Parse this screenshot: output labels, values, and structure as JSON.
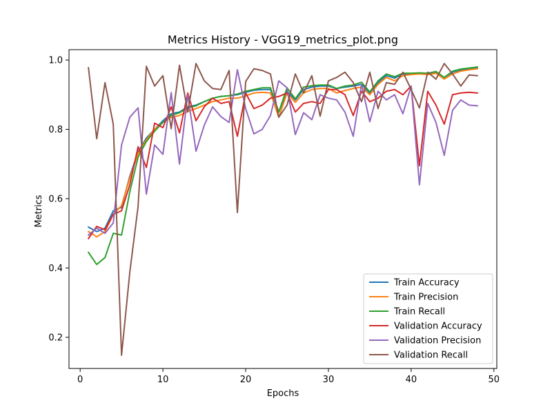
{
  "chart_data": {
    "type": "line",
    "title": "Metrics History - VGG19_metrics_plot.png",
    "xlabel": "Epochs",
    "ylabel": "Metrics",
    "xlim": [
      -1.35,
      50.35
    ],
    "ylim": [
      0.11,
      1.03
    ],
    "xticks": [
      0,
      10,
      20,
      30,
      40,
      50
    ],
    "yticks": [
      0.2,
      0.4,
      0.6,
      0.8,
      1.0
    ],
    "xtick_labels": [
      "0",
      "10",
      "20",
      "30",
      "40",
      "50"
    ],
    "ytick_labels": [
      "0.2",
      "0.4",
      "0.6",
      "0.8",
      "1.0"
    ],
    "grid": false,
    "legend_position": "lower-right",
    "x": [
      1,
      2,
      3,
      4,
      5,
      6,
      7,
      8,
      9,
      10,
      11,
      12,
      13,
      14,
      15,
      16,
      17,
      18,
      19,
      20,
      21,
      22,
      23,
      24,
      25,
      26,
      27,
      28,
      29,
      30,
      31,
      32,
      33,
      34,
      35,
      36,
      37,
      38,
      39,
      40,
      41,
      42,
      43,
      44,
      45,
      46,
      47,
      48
    ],
    "series": [
      {
        "name": "Train Accuracy",
        "color": "#1f77b4",
        "values": [
          0.518,
          0.505,
          0.515,
          0.565,
          0.575,
          0.665,
          0.735,
          0.775,
          0.8,
          0.825,
          0.845,
          0.85,
          0.865,
          0.87,
          0.88,
          0.89,
          0.895,
          0.897,
          0.9,
          0.907,
          0.913,
          0.915,
          0.915,
          0.85,
          0.91,
          0.885,
          0.915,
          0.922,
          0.925,
          0.925,
          0.918,
          0.922,
          0.925,
          0.93,
          0.905,
          0.935,
          0.955,
          0.948,
          0.96,
          0.96,
          0.962,
          0.96,
          0.965,
          0.95,
          0.965,
          0.972,
          0.975,
          0.978
        ]
      },
      {
        "name": "Train Precision",
        "color": "#ff7f0e",
        "values": [
          0.505,
          0.49,
          0.505,
          0.555,
          0.58,
          0.66,
          0.73,
          0.77,
          0.8,
          0.82,
          0.835,
          0.84,
          0.852,
          0.86,
          0.87,
          0.88,
          0.885,
          0.89,
          0.89,
          0.897,
          0.905,
          0.907,
          0.905,
          0.835,
          0.905,
          0.878,
          0.905,
          0.915,
          0.918,
          0.918,
          0.905,
          0.912,
          0.918,
          0.922,
          0.9,
          0.93,
          0.95,
          0.94,
          0.955,
          0.958,
          0.96,
          0.958,
          0.962,
          0.945,
          0.96,
          0.968,
          0.972,
          0.975
        ]
      },
      {
        "name": "Train Recall",
        "color": "#2ca02c",
        "values": [
          0.445,
          0.41,
          0.43,
          0.5,
          0.495,
          0.62,
          0.72,
          0.765,
          0.795,
          0.82,
          0.84,
          0.848,
          0.862,
          0.868,
          0.88,
          0.89,
          0.895,
          0.897,
          0.902,
          0.91,
          0.915,
          0.92,
          0.92,
          0.85,
          0.92,
          0.888,
          0.922,
          0.926,
          0.928,
          0.928,
          0.918,
          0.925,
          0.928,
          0.936,
          0.908,
          0.94,
          0.96,
          0.952,
          0.962,
          0.962,
          0.963,
          0.962,
          0.967,
          0.95,
          0.968,
          0.974,
          0.977,
          0.98
        ]
      },
      {
        "name": "Validation Accuracy",
        "color": "#d62728",
        "values": [
          0.485,
          0.52,
          0.51,
          0.555,
          0.565,
          0.64,
          0.75,
          0.69,
          0.818,
          0.805,
          0.865,
          0.79,
          0.905,
          0.825,
          0.865,
          0.89,
          0.875,
          0.88,
          0.78,
          0.905,
          0.86,
          0.87,
          0.89,
          0.895,
          0.905,
          0.85,
          0.875,
          0.88,
          0.875,
          0.915,
          0.915,
          0.9,
          0.84,
          0.91,
          0.88,
          0.89,
          0.91,
          0.915,
          0.9,
          0.925,
          0.695,
          0.91,
          0.87,
          0.815,
          0.9,
          0.905,
          0.907,
          0.905
        ]
      },
      {
        "name": "Validation Precision",
        "color": "#9467bd",
        "values": [
          0.495,
          0.515,
          0.5,
          0.53,
          0.755,
          0.835,
          0.862,
          0.613,
          0.755,
          0.728,
          0.906,
          0.7,
          0.9,
          0.737,
          0.812,
          0.865,
          0.837,
          0.82,
          0.972,
          0.86,
          0.787,
          0.8,
          0.84,
          0.94,
          0.92,
          0.785,
          0.848,
          0.828,
          0.9,
          0.89,
          0.885,
          0.85,
          0.78,
          0.93,
          0.822,
          0.91,
          0.885,
          0.9,
          0.845,
          0.925,
          0.64,
          0.875,
          0.82,
          0.725,
          0.855,
          0.885,
          0.87,
          0.868
        ]
      },
      {
        "name": "Validation Recall",
        "color": "#8c564b",
        "values": [
          0.978,
          0.773,
          0.935,
          0.815,
          0.148,
          0.388,
          0.578,
          0.982,
          0.925,
          0.955,
          0.802,
          0.985,
          0.85,
          0.99,
          0.94,
          0.918,
          0.915,
          0.97,
          0.56,
          0.938,
          0.975,
          0.97,
          0.96,
          0.835,
          0.87,
          0.96,
          0.905,
          0.955,
          0.838,
          0.94,
          0.95,
          0.965,
          0.935,
          0.88,
          0.965,
          0.86,
          0.935,
          0.93,
          0.965,
          0.915,
          0.862,
          0.965,
          0.945,
          0.99,
          0.96,
          0.925,
          0.957,
          0.955
        ]
      }
    ]
  }
}
